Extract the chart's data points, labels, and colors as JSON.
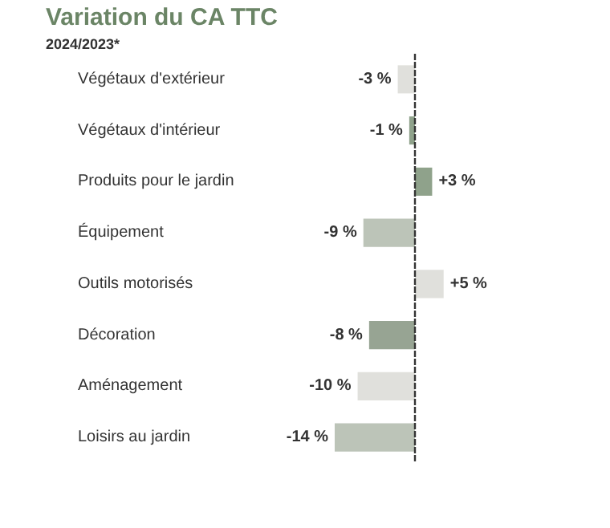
{
  "chart_data": {
    "type": "bar",
    "orientation": "horizontal",
    "title": "Variation du CA TTC",
    "subtitle": "2024/2023*",
    "categories": [
      "Végétaux d'extérieur",
      "Végétaux d'intérieur",
      "Produits pour le jardin",
      "Équipement",
      "Outils motorisés",
      "Décoration",
      "Aménagement",
      "Loisirs au jardin"
    ],
    "values": [
      -3,
      -1,
      3,
      -9,
      5,
      -8,
      -10,
      -14
    ],
    "value_labels": [
      "-3 %",
      "-1 %",
      "+3 %",
      "-9 %",
      "+5 %",
      "-8 %",
      "-10 %",
      "-14 %"
    ],
    "colors": [
      "#e0e0dc",
      "#8fa28b",
      "#8fa28b",
      "#bcc4b8",
      "#e0e0dc",
      "#97a493",
      "#e0e0dc",
      "#bcc4b8"
    ],
    "ref_lines": [
      {
        "axis": "x",
        "value": 0,
        "color": "#333333",
        "line_style": "dashed"
      }
    ]
  }
}
